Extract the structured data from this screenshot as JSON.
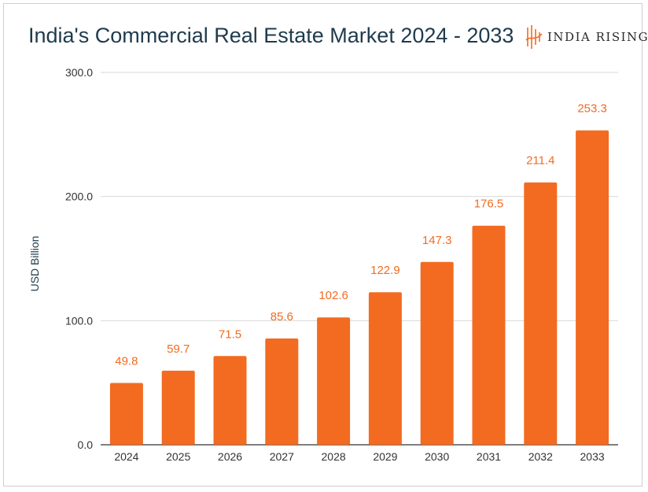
{
  "chart_data": {
    "type": "bar",
    "title": "India's Commercial Real Estate Market 2024 - 2033",
    "xlabel": "",
    "ylabel": "USD Billion",
    "categories": [
      "2024",
      "2025",
      "2026",
      "2027",
      "2028",
      "2029",
      "2030",
      "2031",
      "2032",
      "2033"
    ],
    "values": [
      49.8,
      59.7,
      71.5,
      85.6,
      102.6,
      122.9,
      147.3,
      176.5,
      211.4,
      253.3
    ],
    "value_labels": [
      "49.8",
      "59.7",
      "71.5",
      "85.6",
      "102.6",
      "122.9",
      "147.3",
      "176.5",
      "211.4",
      "253.3"
    ],
    "ylim": [
      0,
      300
    ],
    "yticks": [
      "0.0",
      "100.0",
      "200.0",
      "300.0"
    ],
    "grid": true,
    "legend": "none",
    "bar_color": "#f26b21",
    "label_color": "#f26b21"
  },
  "brand": {
    "name": "INDIA RISING",
    "logo_icon": "india-rising-logo-icon",
    "logo_color": "#f26b21"
  }
}
